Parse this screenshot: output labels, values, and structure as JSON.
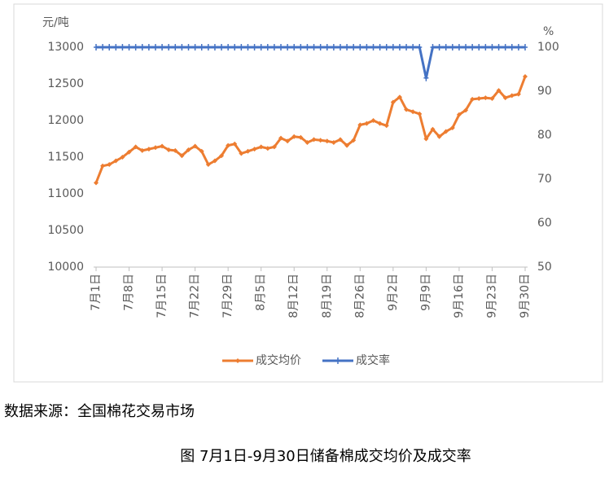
{
  "chart_data": {
    "type": "line",
    "y_unit_label": "元/吨",
    "y2_unit_label": "%",
    "categories": [
      "7月1日",
      null,
      null,
      null,
      null,
      "7月8日",
      null,
      null,
      null,
      null,
      "7月15日",
      null,
      null,
      null,
      null,
      "7月22日",
      null,
      null,
      null,
      null,
      "7月29日",
      null,
      null,
      null,
      null,
      "8月5日",
      null,
      null,
      null,
      null,
      "8月12日",
      null,
      null,
      null,
      null,
      "8月19日",
      null,
      null,
      null,
      null,
      "8月26日",
      null,
      null,
      null,
      null,
      "9月2日",
      null,
      null,
      null,
      null,
      "9月9日",
      null,
      null,
      null,
      null,
      "9月16日",
      null,
      null,
      null,
      null,
      "9月23日",
      null,
      null,
      null,
      null,
      "9月30日"
    ],
    "series": [
      {
        "name": "成交均价",
        "color": "#ed7d31",
        "axis": "y",
        "values": [
          11150,
          11380,
          11400,
          11450,
          11500,
          11570,
          11640,
          11590,
          11610,
          11630,
          11650,
          11600,
          11590,
          11520,
          11600,
          11650,
          11580,
          11400,
          11450,
          11520,
          11660,
          11680,
          11550,
          11580,
          11610,
          11640,
          11620,
          11640,
          11760,
          11720,
          11780,
          11770,
          11700,
          11740,
          11730,
          11720,
          11700,
          11740,
          11660,
          11730,
          11940,
          11960,
          12000,
          11960,
          11930,
          12250,
          12320,
          12150,
          12120,
          12090,
          11750,
          11880,
          11780,
          11850,
          11900,
          12080,
          12140,
          12290,
          12300,
          12310,
          12300,
          12410,
          12310,
          12340,
          12360,
          12600
        ]
      },
      {
        "name": "成交率",
        "color": "#4472c4",
        "axis": "y2",
        "values": [
          100,
          100,
          100,
          100,
          100,
          100,
          100,
          100,
          100,
          100,
          100,
          100,
          100,
          100,
          100,
          100,
          100,
          100,
          100,
          100,
          100,
          100,
          100,
          100,
          100,
          100,
          100,
          100,
          100,
          100,
          100,
          100,
          100,
          100,
          100,
          100,
          100,
          100,
          100,
          100,
          100,
          100,
          100,
          100,
          100,
          100,
          100,
          100,
          100,
          100,
          93,
          100,
          100,
          100,
          100,
          100,
          100,
          100,
          100,
          100,
          100,
          100,
          100,
          100,
          100,
          100
        ]
      }
    ],
    "ylim": [
      10000,
      13000
    ],
    "yticks": [
      10000,
      10500,
      11000,
      11500,
      12000,
      12500,
      13000
    ],
    "y2lim": [
      50,
      100
    ],
    "y2ticks": [
      50,
      60,
      70,
      80,
      90,
      100
    ],
    "grid": false
  },
  "source": "数据来源：全国棉花交易市场",
  "caption": "图  7月1日-9月30日储备棉成交均价及成交率"
}
